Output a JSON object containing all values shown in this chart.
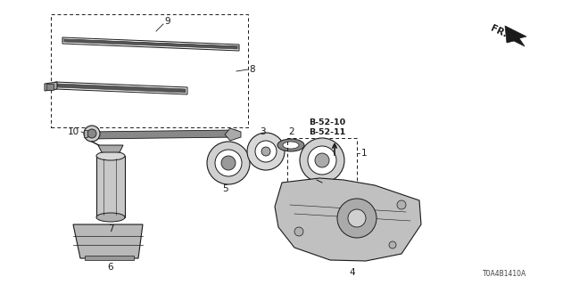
{
  "bg_color": "#ffffff",
  "line_color": "#1a1a1a",
  "part_number": "T0A4B1410A",
  "fr_text": "FR.",
  "b5210": "B-52-10",
  "b5211": "B-52-11"
}
